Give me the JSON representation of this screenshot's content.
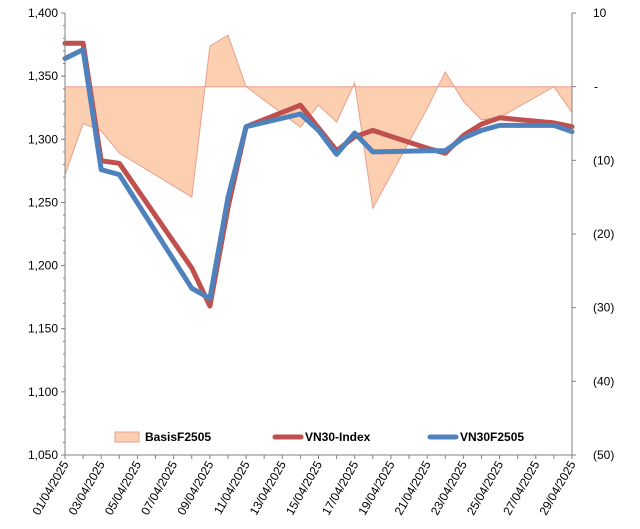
{
  "chart_data": {
    "type": "line",
    "title": "",
    "xlabel": "",
    "ylabel": "",
    "x_tick_labels": [
      "01/04/2025",
      "03/04/2025",
      "05/04/2025",
      "07/04/2025",
      "09/04/2025",
      "11/04/2025",
      "13/04/2025",
      "15/04/2025",
      "17/04/2025",
      "19/04/2025",
      "21/04/2025",
      "23/04/2025",
      "25/04/2025",
      "27/04/2025",
      "29/04/2025"
    ],
    "y_left": {
      "min": 1050,
      "max": 1400,
      "ticks": [
        "1,050",
        "1,100",
        "1,150",
        "1,200",
        "1,250",
        "1,300",
        "1,350",
        "1,400"
      ]
    },
    "y_right": {
      "min": -50,
      "max": 10,
      "ticks": [
        "10",
        "-",
        "(10)",
        "(20)",
        "(30)",
        "(40)",
        "(50)"
      ]
    },
    "legend_position": "bottom-inside",
    "series": [
      {
        "name": "BasisF2505",
        "kind": "area",
        "axis": "right",
        "color_fill": "#FBCFB0",
        "color_line": "#E8A090",
        "x": [
          "01/04/2025",
          "02/04/2025",
          "03/04/2025",
          "04/04/2025",
          "08/04/2025",
          "09/04/2025",
          "10/04/2025",
          "11/04/2025",
          "14/04/2025",
          "15/04/2025",
          "16/04/2025",
          "17/04/2025",
          "18/04/2025",
          "21/04/2025",
          "22/04/2025",
          "23/04/2025",
          "24/04/2025",
          "25/04/2025",
          "28/04/2025",
          "29/04/2025"
        ],
        "values": [
          -12.0,
          -5.0,
          -6.0,
          -9.0,
          -15.0,
          5.5,
          7.0,
          0.0,
          -5.5,
          -2.5,
          -4.8,
          0.5,
          -16.5,
          -3.0,
          2.0,
          -2.0,
          -4.5,
          -4.2,
          0.0,
          -3.5
        ]
      },
      {
        "name": "VN30-Index",
        "kind": "line",
        "axis": "left",
        "color": "#C0504D",
        "x": [
          "01/04/2025",
          "02/04/2025",
          "03/04/2025",
          "04/04/2025",
          "08/04/2025",
          "09/04/2025",
          "10/04/2025",
          "11/04/2025",
          "14/04/2025",
          "15/04/2025",
          "16/04/2025",
          "17/04/2025",
          "18/04/2025",
          "21/04/2025",
          "22/04/2025",
          "23/04/2025",
          "24/04/2025",
          "25/04/2025",
          "28/04/2025",
          "29/04/2025"
        ],
        "values": [
          1376,
          1376,
          1283,
          1281,
          1198,
          1168,
          1246,
          1310,
          1327,
          1309,
          1291,
          1302,
          1307,
          1293,
          1289,
          1303,
          1312,
          1317,
          1313,
          1310
        ]
      },
      {
        "name": "VN30F2505",
        "kind": "line",
        "axis": "left",
        "color": "#4F81BD",
        "x": [
          "01/04/2025",
          "02/04/2025",
          "03/04/2025",
          "04/04/2025",
          "08/04/2025",
          "09/04/2025",
          "10/04/2025",
          "11/04/2025",
          "14/04/2025",
          "15/04/2025",
          "16/04/2025",
          "17/04/2025",
          "18/04/2025",
          "21/04/2025",
          "22/04/2025",
          "23/04/2025",
          "24/04/2025",
          "25/04/2025",
          "28/04/2025",
          "29/04/2025"
        ],
        "values": [
          1364,
          1371,
          1276,
          1272,
          1182,
          1174,
          1254,
          1310,
          1320,
          1307,
          1288,
          1305,
          1290,
          1291,
          1291,
          1301,
          1307,
          1311,
          1311,
          1306
        ]
      }
    ]
  }
}
